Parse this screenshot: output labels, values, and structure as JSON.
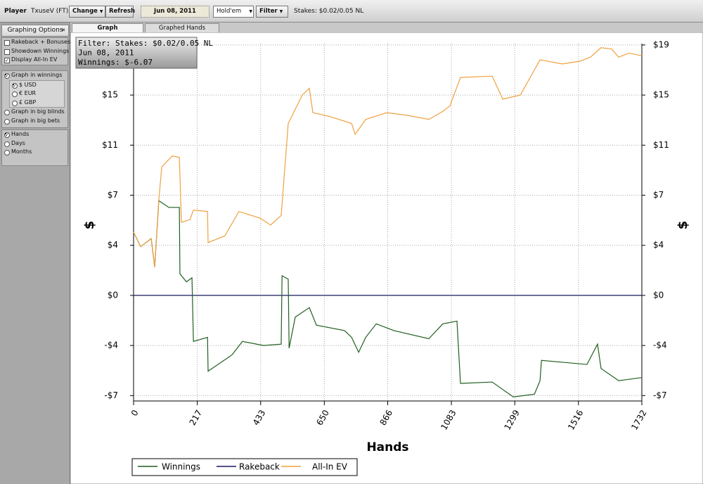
{
  "toolbar": {
    "player_label": "Player",
    "player": "TxuseV (FT)",
    "change": "Change",
    "refresh": "Refresh",
    "date": "Jun 08, 2011",
    "game": "Hold'em",
    "filter": "Filter",
    "stakes": "Stakes: $0.02/0.05 NL"
  },
  "sidebar": {
    "title": "Graphing Options",
    "collapse": "«",
    "options": [
      {
        "label": "Rakeback + Bonuses",
        "checked": false
      },
      {
        "label": "Showdown Winnings",
        "checked": false
      },
      {
        "label": "Display All-In EV",
        "checked": true
      }
    ],
    "graph_in": [
      {
        "label": "Graph in winnings",
        "selected": true
      },
      {
        "label": "Graph in big blinds",
        "selected": false
      },
      {
        "label": "Graph in big bets",
        "selected": false
      }
    ],
    "currencies": [
      {
        "label": "$ USD",
        "selected": true
      },
      {
        "label": "€ EUR",
        "selected": false
      },
      {
        "label": "£ GBP",
        "selected": false
      }
    ],
    "x_units": [
      {
        "label": "Hands",
        "selected": true
      },
      {
        "label": "Days",
        "selected": false
      },
      {
        "label": "Months",
        "selected": false
      }
    ]
  },
  "tabs": [
    "Graph",
    "Graphed Hands"
  ],
  "chart_data": {
    "type": "line",
    "x_label": "Hands",
    "y_label": "$",
    "info_box": [
      "Filter: Stakes: $0.02/0.05 NL",
      "Jun 08, 2011",
      "Winnings: $-6.07"
    ],
    "xlim": [
      0,
      1732
    ],
    "xticks": [
      0,
      217,
      433,
      650,
      866,
      1083,
      1299,
      1516,
      1732
    ],
    "ylim": [
      -7.8,
      18.6
    ],
    "yticks": [
      {
        "value": -7.4,
        "label": "-$7"
      },
      {
        "value": -3.7,
        "label": "-$4"
      },
      {
        "value": 0,
        "label": "$0"
      },
      {
        "value": 3.7,
        "label": "$4"
      },
      {
        "value": 7.4,
        "label": "$7"
      },
      {
        "value": 11.1,
        "label": "$11"
      },
      {
        "value": 14.8,
        "label": "$15"
      },
      {
        "value": 18.5,
        "label": "$19"
      }
    ],
    "grid": true,
    "legend": "bottom",
    "series": [
      {
        "name": "Winnings",
        "color": "#1f5f1f",
        "x": [
          0,
          24,
          60,
          72,
          86,
          120,
          156,
          158,
          180,
          199,
          204,
          252,
          254,
          335,
          371,
          443,
          503,
          506,
          527,
          530,
          551,
          599,
          623,
          719,
          743,
          767,
          791,
          827,
          887,
          1006,
          1054,
          1102,
          1114,
          1222,
          1294,
          1366,
          1385,
          1390,
          1545,
          1581,
          1593,
          1653,
          1732
        ],
        "values": [
          4.67,
          3.6,
          4.2,
          2.1,
          7.0,
          6.5,
          6.5,
          1.6,
          1.0,
          1.3,
          -3.4,
          -3.1,
          -5.6,
          -4.4,
          -3.4,
          -3.7,
          -3.6,
          1.45,
          1.2,
          -3.9,
          -1.6,
          -0.9,
          -2.2,
          -2.6,
          -3.1,
          -4.2,
          -3.1,
          -2.1,
          -2.6,
          -3.2,
          -2.1,
          -1.9,
          -6.5,
          -6.4,
          -7.5,
          -7.3,
          -6.3,
          -4.8,
          -5.1,
          -3.6,
          -5.4,
          -6.3,
          -6.07
        ]
      },
      {
        "name": "Rakeback",
        "color": "#1a1a60",
        "x": [
          0,
          1732
        ],
        "values": [
          0,
          0
        ]
      },
      {
        "name": "All-In EV",
        "color": "#f0a040",
        "x": [
          0,
          24,
          60,
          72,
          86,
          96,
          132,
          156,
          163,
          192,
          204,
          252,
          254,
          311,
          359,
          431,
          467,
          503,
          527,
          575,
          599,
          611,
          671,
          743,
          755,
          791,
          863,
          934,
          1006,
          1054,
          1078,
          1114,
          1222,
          1258,
          1318,
          1385,
          1461,
          1521,
          1557,
          1593,
          1629,
          1653,
          1689,
          1732
        ],
        "values": [
          4.67,
          3.6,
          4.2,
          2.1,
          7.0,
          9.5,
          10.3,
          10.2,
          5.4,
          5.6,
          6.3,
          6.2,
          3.9,
          4.4,
          6.2,
          5.7,
          5.2,
          5.9,
          12.7,
          14.8,
          15.3,
          13.5,
          13.2,
          12.7,
          11.9,
          13.0,
          13.5,
          13.3,
          13.0,
          13.6,
          14.0,
          16.1,
          16.2,
          14.5,
          14.8,
          17.4,
          17.1,
          17.3,
          17.6,
          18.3,
          18.2,
          17.6,
          17.9,
          17.7
        ]
      }
    ]
  }
}
